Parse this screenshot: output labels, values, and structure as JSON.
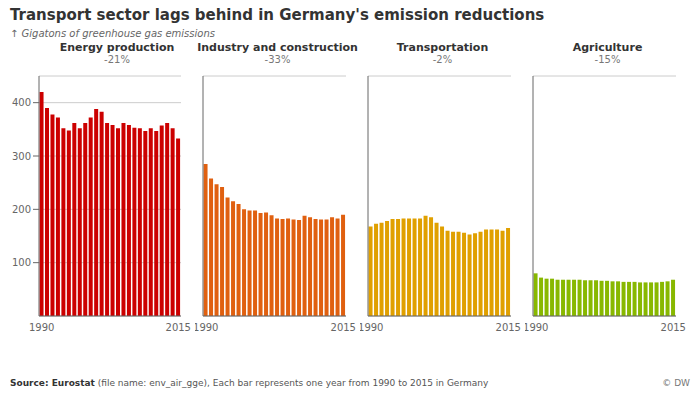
{
  "chart_data": {
    "type": "bar",
    "title": "Transport sector lags behind in Germany's emission reductions",
    "ylabel": "↑ Gigatons of greenhouse gas emissions",
    "categories": [
      "1990",
      null,
      null,
      null,
      null,
      null,
      null,
      null,
      null,
      null,
      null,
      null,
      null,
      null,
      null,
      null,
      null,
      null,
      null,
      null,
      null,
      null,
      null,
      null,
      null,
      "2015"
    ],
    "series": [
      {
        "name": "Energy production",
        "annotation": "-21%",
        "color": "#cc0000",
        "values": [
          420,
          390,
          378,
          372,
          352,
          348,
          362,
          352,
          362,
          372,
          388,
          383,
          362,
          358,
          352,
          362,
          358,
          353,
          352,
          347,
          352,
          347,
          357,
          362,
          352,
          333
        ]
      },
      {
        "name": "Industry and construction",
        "annotation": "-33%",
        "color": "#e06010",
        "values": [
          285,
          258,
          247,
          242,
          222,
          215,
          210,
          200,
          198,
          198,
          193,
          194,
          189,
          183,
          182,
          183,
          181,
          180,
          188,
          185,
          182,
          181,
          181,
          185,
          183,
          190
        ]
      },
      {
        "name": "Transportation",
        "annotation": "-2%",
        "color": "#e0a000",
        "values": [
          168,
          173,
          175,
          178,
          182,
          182,
          183,
          183,
          183,
          183,
          188,
          185,
          175,
          168,
          160,
          158,
          158,
          156,
          153,
          155,
          158,
          162,
          162,
          162,
          160,
          165
        ]
      },
      {
        "name": "Agriculture",
        "annotation": "-15%",
        "color": "#88b800",
        "values": [
          80,
          72,
          70,
          70,
          68,
          68,
          68,
          68,
          68,
          67,
          67,
          67,
          66,
          66,
          65,
          65,
          64,
          64,
          64,
          63,
          63,
          63,
          63,
          64,
          65,
          68
        ]
      }
    ],
    "ylim": [
      0,
      450
    ],
    "yticks": [
      100,
      200,
      300,
      400
    ],
    "grid": true,
    "annotations": [
      "Source: Eurostat",
      " (file name: env_air_gge), Each bar represents one year from 1990 to 2015 in Germany",
      "© DW"
    ]
  }
}
